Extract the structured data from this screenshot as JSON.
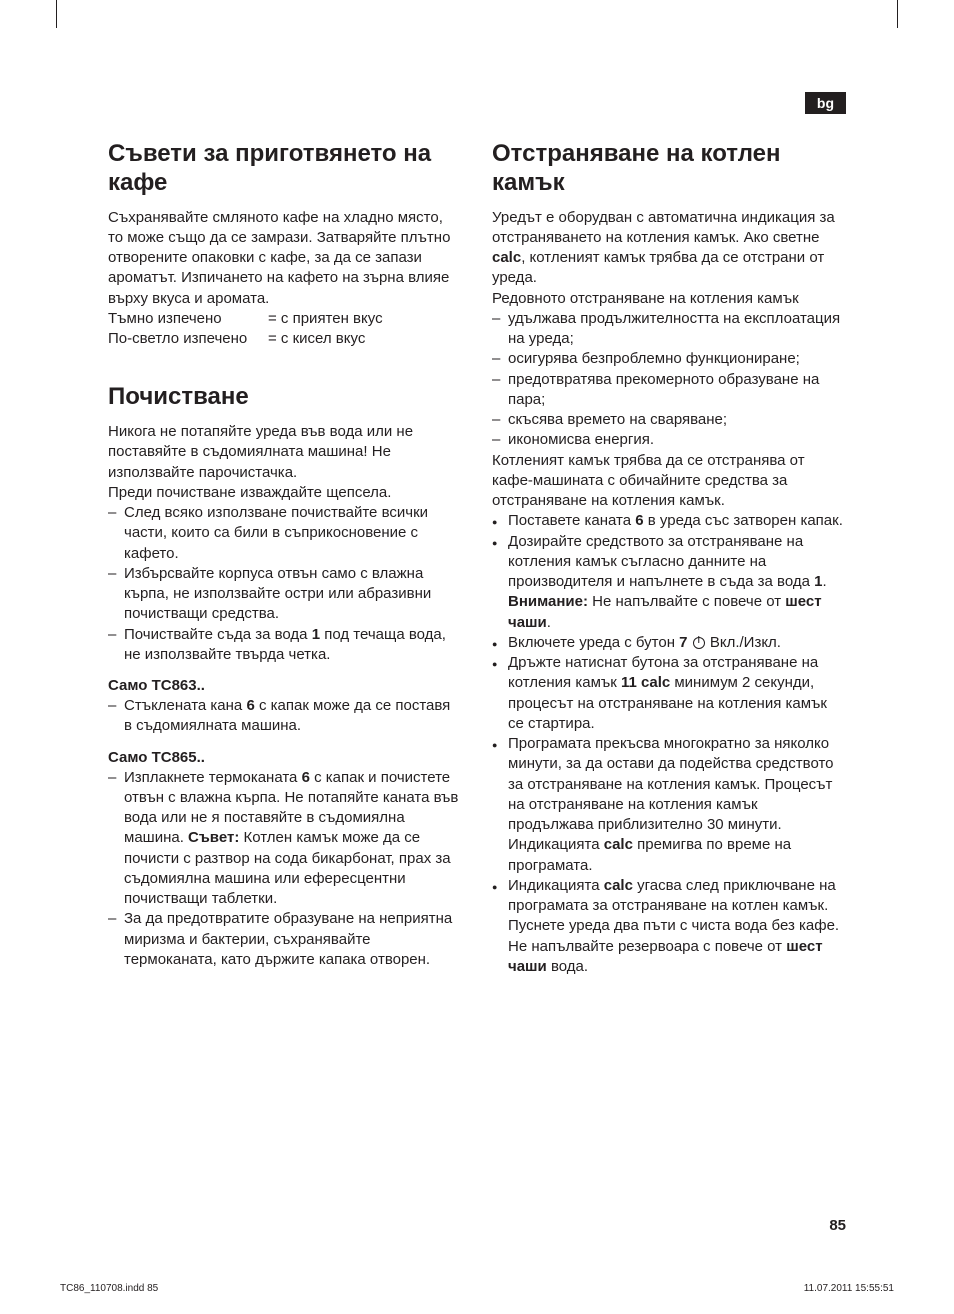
{
  "lang_badge": "bg",
  "page_number": "85",
  "footer": {
    "left": "TC86_110708.indd   85",
    "right": "11.07.2011   15:55:51"
  },
  "left_col": {
    "s1": {
      "title": "Съвети за приготвянето на кафе",
      "p1": "Съхранявайте смляното кафе на хладно място, то може също да се замрази. Затваряйте плътно отворените опаковки с кафе, за да се запази ароматът. Изпичането на кафето на зърна влияе върху вкуса и аромата.",
      "roast": [
        {
          "label": "Тъмно изпечено",
          "val": "= с приятен вкус"
        },
        {
          "label": "По-светло изпечено",
          "val": "= с кисел вкус"
        }
      ]
    },
    "s2": {
      "title": "Почистване",
      "p1": "Никога не потапяйте уреда във вода или не поставяйте в съдомиялната машина! Не използвайте парочистачка.",
      "p2": "Преди почистване изваждайте щепсела.",
      "items": [
        "След всяко използване почиствайте всички части, които са били в съприкосновение с кафето.",
        "Избърсвайте корпуса отвън само с влажна кърпа, не използвайте остри или абразивни почистващи средства.",
        "Почиствайте съда за вода <b>1</b> под течаща вода, не използвайте твърда четка."
      ],
      "sub1": {
        "heading": "Само TC863..",
        "items": [
          "Стъклената кана <b>6</b> с капак може да се поставя в съдомиялната машина."
        ]
      },
      "sub2": {
        "heading": "Само TC865..",
        "items": [
          "Изплакнете термоканата <b>6</b> с капак и почистете отвън с влажна кърпа. Не потапяйте каната във вода или не я поставяйте в съдомиялна машина. <b>Съвет:</b> Котлен камък може да се почисти с разтвор на сода бикарбонат, прах за съдомиялна машина или ефересцентни почистващи таблетки.",
          "За да предотвратите образуване на неприятна миризма и бактерии, съхранявайте термоканата, като държите капака отворен."
        ]
      }
    }
  },
  "right_col": {
    "s1": {
      "title": "Отстраняване на котлен камък",
      "p1": "Уредът е оборудван с автоматична индикация за отстраняването на котления камък. Ако светне <b>calc</b>, котленият камък трябва да се отстрани от уреда.",
      "p2": "Редовното отстраняване на котления камък",
      "benefits": [
        "удължава продължителността на експлоатация на уреда;",
        "осигурява безпроблемно функциониране;",
        "предотвратява прекомерното образуване на пара;",
        "скъсява времето на сваряване;",
        "икономисва енергия."
      ],
      "p3": "Котленият камък трябва да се отстранява от кафе-машината с обичайните средства за отстраняване на котления камък.",
      "steps": [
        "Поставете каната <b>6</b> в уреда със затворен капак.",
        "Дозирайте средството за отстраняване на котления камък съгласно данните на производителя и напълнете в съда за вода <b>1</b>.<br><b>Внимание:</b> Не напълвайте с повече от <b>шест чаши</b>.",
        "Включете уреда с бутон <b>7</b> {POWER} Вкл./Изкл.",
        "Дръжте натиснат бутона за отстраняване на котления камък <b>11 calc</b> минимум 2 секунди, процесът на отстраняване на котления камък се стартира.",
        "Програмата прекъсва многократно за няколко минути, за да остави да подейства средството за отстраняване на котления камък. Процесът на отстраняване на котления камък продължава приблизително 30 минути. Индикацията <b>calc</b> премигва по време на програмата.",
        "Индикацията <b>calc</b> угасва след приключване на програмата за отстраняване на котлен камък. Пуснете уреда два пъти с чиста вода без кафе.  Не напълвайте резервоара с повече от <b>шест чаши</b> вода."
      ]
    }
  }
}
